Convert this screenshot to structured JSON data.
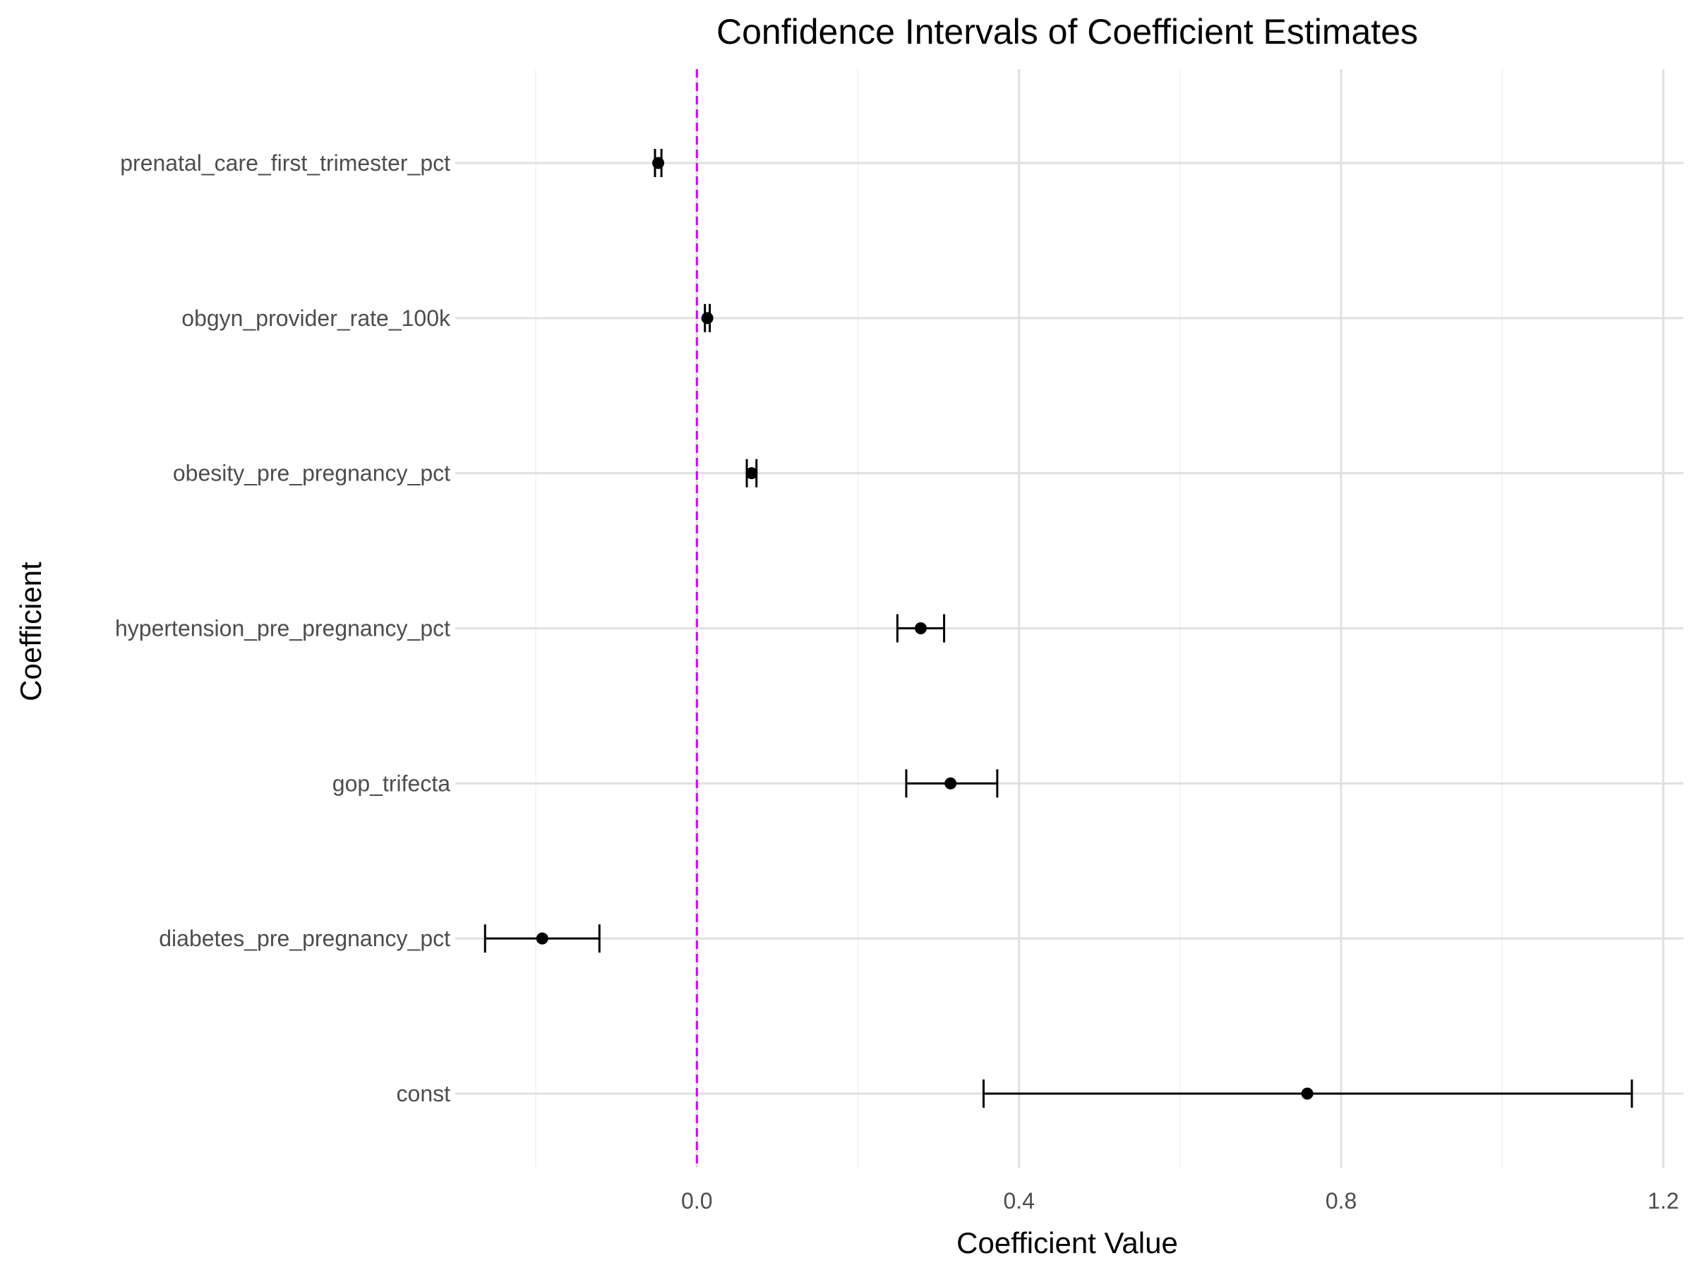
{
  "chart_data": {
    "type": "errorbar",
    "title": "Confidence Intervals of Coefficient Estimates",
    "xlabel": "Coefficient Value",
    "ylabel": "Coefficient",
    "xlim": [
      -0.3,
      1.225
    ],
    "x_ticks": [
      0.0,
      0.4,
      0.8,
      1.2
    ],
    "x_tick_labels": [
      "0.0",
      "0.4",
      "0.8",
      "1.2"
    ],
    "grid": true,
    "reference_line": {
      "x": 0,
      "color": "#cc00ff",
      "style": "dashed"
    },
    "categories": [
      "const",
      "diabetes_pre_pregnancy_pct",
      "gop_trifecta",
      "hypertension_pre_pregnancy_pct",
      "obesity_pre_pregnancy_pct",
      "obgyn_provider_rate_100k",
      "prenatal_care_first_trimester_pct"
    ],
    "estimates": [
      0.758,
      -0.192,
      0.315,
      0.278,
      0.068,
      0.013,
      -0.048
    ],
    "lower": [
      0.356,
      -0.263,
      0.26,
      0.249,
      0.062,
      0.01,
      -0.052
    ],
    "upper": [
      1.161,
      -0.121,
      0.373,
      0.307,
      0.074,
      0.016,
      -0.044
    ]
  }
}
